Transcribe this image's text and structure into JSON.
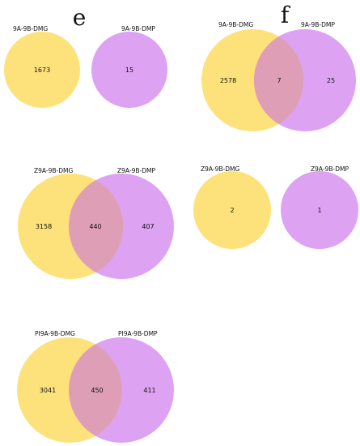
{
  "colors": {
    "left": "#FDE27C",
    "right": "#DDA3F2",
    "overlap": "#DE9FB6"
  },
  "panel_letters": {
    "e": "e",
    "f": "f"
  },
  "diagrams": [
    {
      "id": "e",
      "left_label": "9A-9B-DMG",
      "right_label": "9A-9B-DMP",
      "left_only": "1673",
      "right_only": "15"
    },
    {
      "id": "f",
      "left_label": "9A-9B-DMG",
      "right_label": "9A-9B-DMP",
      "left_only": "2578",
      "overlap": "7",
      "right_only": "25"
    },
    {
      "id": "g",
      "left_label": "Z9A-9B-DMG",
      "right_label": "Z9A-9B-DMP",
      "left_only": "3158",
      "overlap": "440",
      "right_only": "407"
    },
    {
      "id": "h",
      "left_label": "Z9A-9B-DMG",
      "right_label": "Z9A-9B-DMP",
      "left_only": "2",
      "right_only": "1"
    },
    {
      "id": "i",
      "left_label": "PI9A-9B-DMG",
      "right_label": "PI9A-9B-DMP",
      "left_only": "3041",
      "overlap": "450",
      "right_only": "411"
    }
  ]
}
